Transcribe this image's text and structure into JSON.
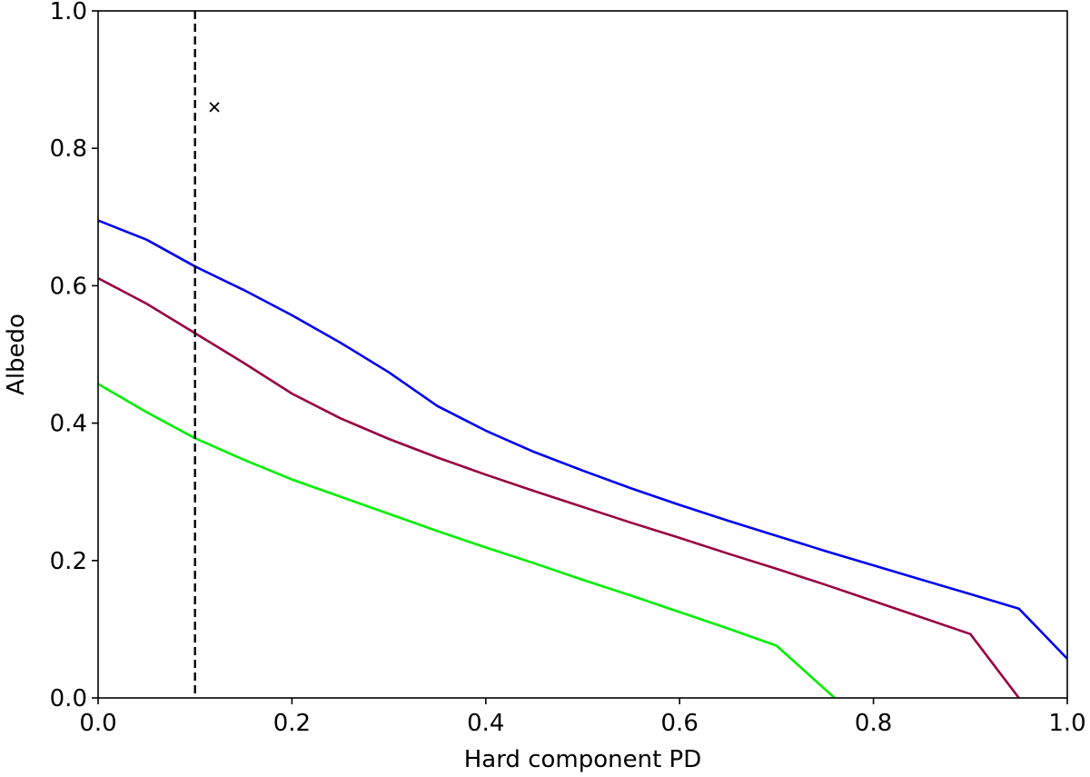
{
  "chart_data": {
    "type": "line",
    "title": "",
    "xlabel": "Hard component PD",
    "ylabel": "Albedo",
    "xlim": [
      0.0,
      1.0
    ],
    "ylim": [
      0.0,
      1.0
    ],
    "xticks": [
      0.0,
      0.2,
      0.4,
      0.6,
      0.8,
      1.0
    ],
    "yticks": [
      0.0,
      0.2,
      0.4,
      0.6,
      0.8,
      1.0
    ],
    "tick_labels_x": [
      "0.0",
      "0.2",
      "0.4",
      "0.6",
      "0.8",
      "1.0"
    ],
    "tick_labels_y": [
      "0.0",
      "0.2",
      "0.4",
      "0.6",
      "0.8",
      "1.0"
    ],
    "grid": false,
    "legend": "none",
    "series": [
      {
        "color": "#0000ee",
        "points": [
          [
            0.0,
            0.695
          ],
          [
            0.05,
            0.667
          ],
          [
            0.1,
            0.628
          ],
          [
            0.15,
            0.594
          ],
          [
            0.2,
            0.557
          ],
          [
            0.25,
            0.517
          ],
          [
            0.3,
            0.474
          ],
          [
            0.35,
            0.425
          ],
          [
            0.4,
            0.389
          ],
          [
            0.45,
            0.358
          ],
          [
            0.5,
            0.331
          ],
          [
            0.55,
            0.305
          ],
          [
            0.6,
            0.281
          ],
          [
            0.65,
            0.258
          ],
          [
            0.7,
            0.236
          ],
          [
            0.75,
            0.214
          ],
          [
            0.8,
            0.193
          ],
          [
            0.85,
            0.172
          ],
          [
            0.9,
            0.151
          ],
          [
            0.95,
            0.13
          ],
          [
            1.0,
            0.057
          ]
        ]
      },
      {
        "color": "#990044",
        "points": [
          [
            0.0,
            0.611
          ],
          [
            0.05,
            0.574
          ],
          [
            0.1,
            0.531
          ],
          [
            0.15,
            0.488
          ],
          [
            0.2,
            0.443
          ],
          [
            0.25,
            0.407
          ],
          [
            0.3,
            0.377
          ],
          [
            0.35,
            0.35
          ],
          [
            0.4,
            0.325
          ],
          [
            0.45,
            0.301
          ],
          [
            0.5,
            0.278
          ],
          [
            0.55,
            0.255
          ],
          [
            0.6,
            0.233
          ],
          [
            0.65,
            0.21
          ],
          [
            0.7,
            0.188
          ],
          [
            0.75,
            0.165
          ],
          [
            0.8,
            0.141
          ],
          [
            0.85,
            0.117
          ],
          [
            0.9,
            0.093
          ],
          [
            0.95,
            0.0
          ]
        ]
      },
      {
        "color": "#00ee00",
        "points": [
          [
            0.0,
            0.457
          ],
          [
            0.05,
            0.416
          ],
          [
            0.1,
            0.378
          ],
          [
            0.15,
            0.347
          ],
          [
            0.2,
            0.318
          ],
          [
            0.25,
            0.293
          ],
          [
            0.3,
            0.268
          ],
          [
            0.35,
            0.243
          ],
          [
            0.4,
            0.219
          ],
          [
            0.45,
            0.196
          ],
          [
            0.5,
            0.172
          ],
          [
            0.55,
            0.149
          ],
          [
            0.6,
            0.125
          ],
          [
            0.65,
            0.101
          ],
          [
            0.7,
            0.076
          ],
          [
            0.76,
            0.0
          ]
        ]
      }
    ],
    "reference_line": {
      "orientation": "vertical",
      "x": 0.1,
      "style": "dashed",
      "color": "#000000"
    },
    "markers": [
      {
        "x": 0.12,
        "y": 0.86,
        "symbol": "×",
        "color": "#000000"
      }
    ]
  }
}
